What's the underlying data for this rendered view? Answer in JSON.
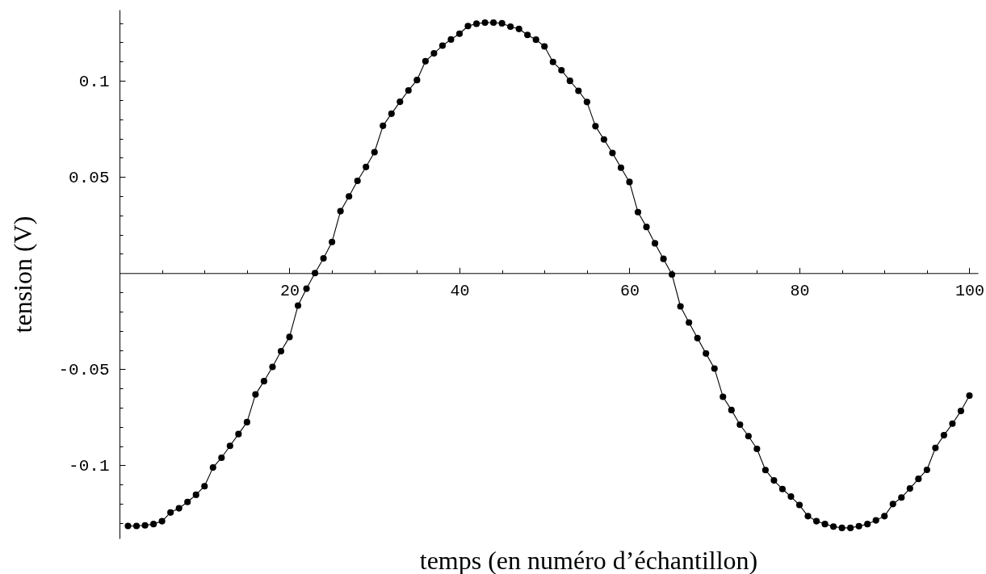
{
  "chart_data": {
    "type": "line",
    "xlabel": "temps (en numéro d’échantillon)",
    "ylabel": "tension (V)",
    "x": [
      1,
      2,
      3,
      4,
      5,
      6,
      7,
      8,
      9,
      10,
      11,
      12,
      13,
      14,
      15,
      16,
      17,
      18,
      19,
      20,
      21,
      22,
      23,
      24,
      25,
      26,
      27,
      28,
      29,
      30,
      31,
      32,
      33,
      34,
      35,
      36,
      37,
      38,
      39,
      40,
      41,
      42,
      43,
      44,
      45,
      46,
      47,
      48,
      49,
      50,
      51,
      52,
      53,
      54,
      55,
      56,
      57,
      58,
      59,
      60,
      61,
      62,
      63,
      64,
      65,
      66,
      67,
      68,
      69,
      70,
      71,
      72,
      73,
      74,
      75,
      76,
      77,
      78,
      79,
      80,
      81,
      82,
      83,
      84,
      85,
      86,
      87,
      88,
      89,
      90,
      91,
      92,
      93,
      94,
      95,
      96,
      97,
      98,
      99,
      100
    ],
    "series": [
      {
        "color": "#000000",
        "values": [
          -0.1315,
          -0.1315,
          -0.1312,
          -0.1305,
          -0.129,
          -0.1245,
          -0.1223,
          -0.119,
          -0.1153,
          -0.1108,
          -0.1011,
          -0.096,
          -0.0898,
          -0.0837,
          -0.0775,
          -0.0631,
          -0.0562,
          -0.0488,
          -0.0406,
          -0.0332,
          -0.0169,
          -0.0081,
          0.0,
          0.0077,
          0.0162,
          0.0322,
          0.0399,
          0.048,
          0.0552,
          0.0629,
          0.0766,
          0.0829,
          0.0891,
          0.095,
          0.1004,
          0.1102,
          0.1143,
          0.1183,
          0.1215,
          0.1245,
          0.1285,
          0.1297,
          0.1303,
          0.1303,
          0.1299,
          0.1282,
          0.127,
          0.1239,
          0.1214,
          0.1179,
          0.1098,
          0.1055,
          0.1,
          0.0948,
          0.089,
          0.0764,
          0.0695,
          0.0625,
          0.0548,
          0.0474,
          0.0317,
          0.024,
          0.0155,
          0.0074,
          -0.0007,
          -0.0173,
          -0.0257,
          -0.0338,
          -0.0418,
          -0.0496,
          -0.0643,
          -0.0712,
          -0.0788,
          -0.0848,
          -0.0914,
          -0.1024,
          -0.1078,
          -0.1123,
          -0.1162,
          -0.1206,
          -0.1264,
          -0.129,
          -0.1305,
          -0.1318,
          -0.1325,
          -0.1325,
          -0.1316,
          -0.1305,
          -0.1286,
          -0.1264,
          -0.1201,
          -0.1167,
          -0.112,
          -0.107,
          -0.1023,
          -0.0909,
          -0.0843,
          -0.0783,
          -0.0717,
          -0.0637
        ]
      }
    ],
    "xlim": [
      0,
      101
    ],
    "ylim": [
      -0.138,
      0.137
    ],
    "xticks": [
      {
        "value": 5,
        "label": null
      },
      {
        "value": 10,
        "label": null
      },
      {
        "value": 15,
        "label": null
      },
      20,
      {
        "value": 25,
        "label": null
      },
      {
        "value": 30,
        "label": null
      },
      {
        "value": 35,
        "label": null
      },
      40,
      {
        "value": 45,
        "label": null
      },
      {
        "value": 50,
        "label": null
      },
      {
        "value": 55,
        "label": null
      },
      60,
      {
        "value": 65,
        "label": null
      },
      {
        "value": 70,
        "label": null
      },
      {
        "value": 75,
        "label": null
      },
      80,
      {
        "value": 85,
        "label": null
      },
      {
        "value": 90,
        "label": null
      },
      {
        "value": 95,
        "label": null
      },
      100
    ],
    "yticks": [
      {
        "value": -0.13,
        "label": null
      },
      {
        "value": -0.12,
        "label": null
      },
      {
        "value": -0.11,
        "label": null
      },
      -0.1,
      {
        "value": -0.09,
        "label": null
      },
      {
        "value": -0.08,
        "label": null
      },
      {
        "value": -0.07,
        "label": null
      },
      {
        "value": -0.06,
        "label": null
      },
      -0.05,
      {
        "value": -0.04,
        "label": null
      },
      {
        "value": -0.03,
        "label": null
      },
      {
        "value": -0.02,
        "label": null
      },
      {
        "value": -0.01,
        "label": null
      },
      {
        "value": 0.01,
        "label": null
      },
      {
        "value": 0.02,
        "label": null
      },
      {
        "value": 0.03,
        "label": null
      },
      {
        "value": 0.04,
        "label": null
      },
      0.05,
      {
        "value": 0.06,
        "label": null
      },
      {
        "value": 0.07,
        "label": null
      },
      {
        "value": 0.08,
        "label": null
      },
      {
        "value": 0.09,
        "label": null
      },
      0.1,
      {
        "value": 0.11,
        "label": null
      },
      {
        "value": 0.12,
        "label": null
      },
      {
        "value": 0.13,
        "label": null
      }
    ],
    "marker": "circle",
    "line_style": "solid"
  }
}
